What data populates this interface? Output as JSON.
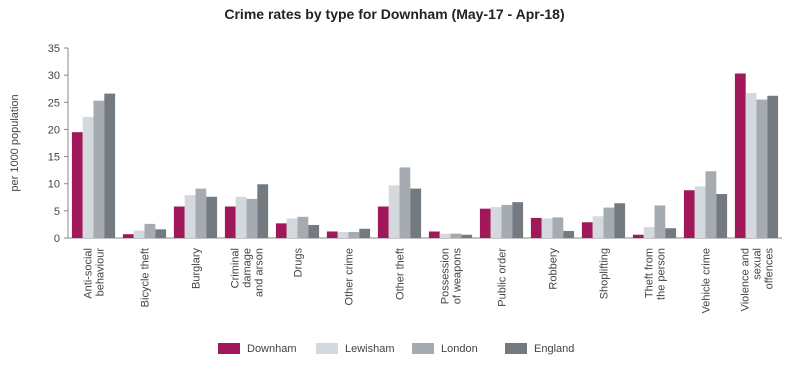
{
  "chart_data": {
    "type": "bar",
    "title": "Crime rates by type for Downham (May-17 - Apr-18)",
    "ylabel": "per 1000 population",
    "xlabel": "",
    "ylim": [
      0,
      35
    ],
    "yticks": [
      0,
      5,
      10,
      15,
      20,
      25,
      30,
      35
    ],
    "categories": [
      [
        "Anti-social",
        "behaviour"
      ],
      [
        "Bicycle theft"
      ],
      [
        "Burglary"
      ],
      [
        "Criminal",
        "damage",
        "and arson"
      ],
      [
        "Drugs"
      ],
      [
        "Other crime"
      ],
      [
        "Other theft"
      ],
      [
        "Possession",
        "of weapons"
      ],
      [
        "Public order"
      ],
      [
        "Robbery"
      ],
      [
        "Shoplifting"
      ],
      [
        "Theft from",
        "the person"
      ],
      [
        "Vehicle crime"
      ],
      [
        "Violence and",
        "sexual",
        "offences"
      ]
    ],
    "series": [
      {
        "name": "Downham",
        "color": "#a0185a",
        "values": [
          19.5,
          0.7,
          5.8,
          5.8,
          2.7,
          1.2,
          5.8,
          1.2,
          5.4,
          3.7,
          2.9,
          0.6,
          8.8,
          30.3
        ]
      },
      {
        "name": "Lewisham",
        "color": "#d4d9de",
        "values": [
          22.3,
          1.4,
          7.9,
          7.6,
          3.6,
          1.1,
          9.7,
          0.8,
          5.7,
          3.6,
          4.0,
          2.0,
          9.5,
          26.7
        ]
      },
      {
        "name": "London",
        "color": "#a5abb0",
        "values": [
          25.3,
          2.6,
          9.1,
          7.2,
          3.9,
          1.1,
          13.0,
          0.8,
          6.1,
          3.8,
          5.6,
          6.0,
          12.3,
          25.5
        ]
      },
      {
        "name": "England",
        "color": "#737a80",
        "values": [
          26.6,
          1.6,
          7.6,
          9.9,
          2.4,
          1.7,
          9.1,
          0.6,
          6.6,
          1.3,
          6.4,
          1.8,
          8.1,
          26.2
        ]
      }
    ],
    "grid": false,
    "legend_position": "bottom"
  }
}
